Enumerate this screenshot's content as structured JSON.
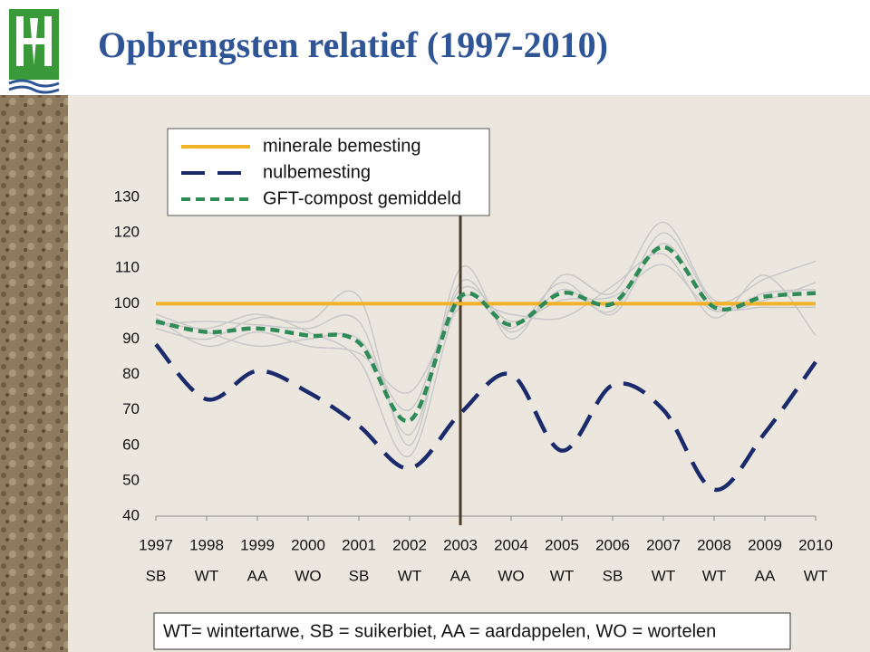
{
  "chart_data": {
    "type": "line",
    "title": "Opbrengsten relatief (1997-2010)",
    "categories": [
      "1997",
      "1998",
      "1999",
      "2000",
      "2001",
      "2002",
      "2003",
      "2004",
      "2005",
      "2006",
      "2007",
      "2008",
      "2009",
      "2010"
    ],
    "crops": [
      "SB",
      "WT",
      "AA",
      "WO",
      "SB",
      "WT",
      "AA",
      "WO",
      "WT",
      "SB",
      "WT",
      "WT",
      "AA",
      "WT"
    ],
    "footnote": "WT= wintertarwe, SB = suikerbiet, AA = aardappelen, WO = wortelen",
    "ylim": [
      40,
      130
    ],
    "yticks": [
      40,
      50,
      60,
      70,
      80,
      90,
      100,
      110,
      120,
      130
    ],
    "marker_category": "2003",
    "background_series": [
      {
        "color": "#c8c8c8",
        "values": [
          93,
          90,
          96,
          95,
          102,
          60,
          110,
          90,
          108,
          103,
          123,
          101,
          107,
          112
        ]
      },
      {
        "color": "#c8c8c8",
        "values": [
          96,
          88,
          92,
          88,
          86,
          75,
          99,
          97,
          96,
          105,
          114,
          96,
          108,
          91
        ]
      },
      {
        "color": "#c8c8c8",
        "values": [
          94,
          95,
          94,
          93,
          95,
          63,
          106,
          92,
          104,
          98,
          120,
          100,
          99,
          99
        ]
      },
      {
        "color": "#c8c8c8",
        "values": [
          97,
          92,
          88,
          90,
          90,
          70,
          104,
          95,
          101,
          102,
          111,
          98,
          103,
          104
        ]
      },
      {
        "color": "#c8c8c8",
        "values": [
          95,
          93,
          97,
          92,
          84,
          57,
          101,
          93,
          106,
          97,
          117,
          99,
          101,
          106
        ]
      }
    ],
    "series": [
      {
        "name": "minerale bemesting",
        "color": "#f2b32a",
        "dash": "solid",
        "values": [
          100,
          100,
          100,
          100,
          100,
          100,
          100,
          100,
          100,
          100,
          100,
          100,
          100,
          100
        ]
      },
      {
        "name": "nulbemesting",
        "color": "#1b2a6b",
        "dash": "long",
        "values": [
          88.5,
          73,
          81,
          75,
          65.5,
          53.5,
          69,
          80,
          58.5,
          77,
          70,
          47.5,
          63.5,
          83.5
        ]
      },
      {
        "name": "GFT-compost gemiddeld",
        "color": "#2e8b57",
        "dash": "short",
        "values": [
          95,
          92,
          93,
          91,
          89,
          67,
          102,
          94,
          103,
          100,
          116,
          99,
          102,
          103
        ]
      }
    ]
  }
}
